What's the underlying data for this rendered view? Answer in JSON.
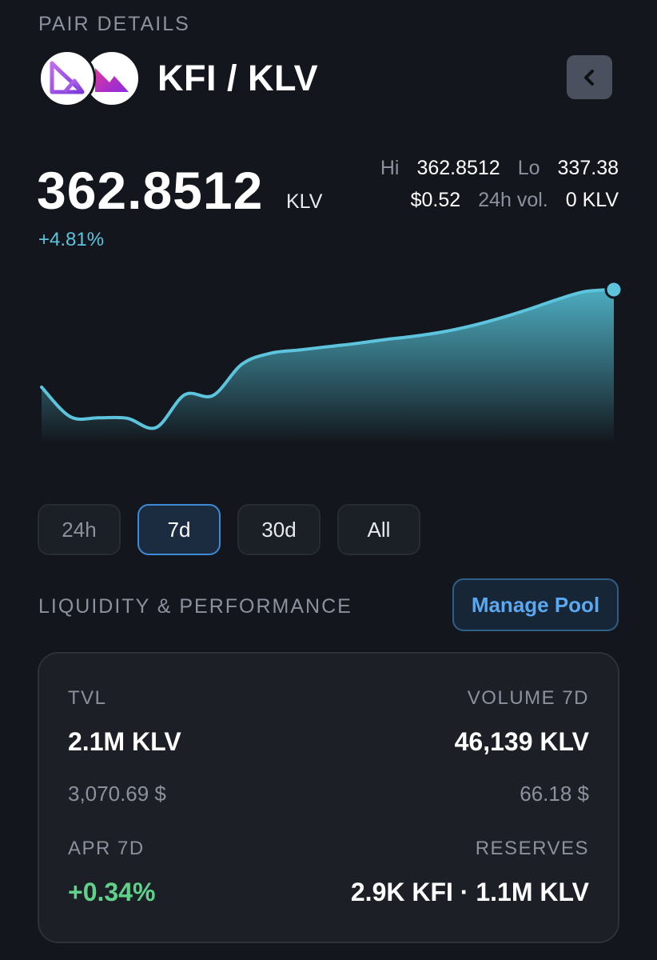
{
  "header": {
    "section_label": "PAIR DETAILS",
    "pair_title": "KFI / KLV",
    "back_icon": "chevron-left-icon",
    "token_logos": [
      "kfi-logo",
      "klv-logo"
    ]
  },
  "price": {
    "value": "362.8512",
    "unit": "KLV",
    "change": "+4.81%"
  },
  "stats": {
    "hi_label": "Hi",
    "hi_value": "362.8512",
    "lo_label": "Lo",
    "lo_value": "337.38",
    "usd_value": "$0.52",
    "vol_label": "24h vol.",
    "vol_value": "0 KLV"
  },
  "chart_data": {
    "type": "area",
    "x": [
      0,
      1,
      2,
      3,
      4,
      5,
      6,
      7,
      8,
      9,
      10,
      11,
      12,
      13,
      14,
      15,
      16,
      17,
      18,
      19,
      20
    ],
    "values": [
      345.0,
      339.6,
      339.4,
      339.3,
      337.6,
      343.6,
      343.5,
      349.2,
      351.2,
      351.8,
      352.4,
      353.0,
      353.7,
      354.3,
      355.1,
      356.2,
      357.6,
      359.2,
      361.0,
      362.5,
      362.8512
    ],
    "ylim": [
      337.38,
      362.8512
    ],
    "colors": {
      "line": "#5cc5dd",
      "fill_top": "#4fb3c7",
      "fill_bottom": "#13161c"
    },
    "grid": false,
    "legend": "none"
  },
  "range_tabs": [
    {
      "label": "24h",
      "active": false
    },
    {
      "label": "7d",
      "active": true
    },
    {
      "label": "30d",
      "active": false
    },
    {
      "label": "All",
      "active": false
    }
  ],
  "liquidity": {
    "section_label": "LIQUIDITY & PERFORMANCE",
    "manage_button": "Manage Pool",
    "tvl_label": "TVL",
    "tvl_value": "2.1M KLV",
    "tvl_usd": "3,070.69 $",
    "volume_label": "VOLUME 7D",
    "volume_value": "46,139 KLV",
    "volume_usd": "66.18 $",
    "apr_label": "APR 7D",
    "apr_value": "+0.34%",
    "reserves_label": "RESERVES",
    "reserves_value": "2.9K KFI · 1.1M KLV"
  }
}
